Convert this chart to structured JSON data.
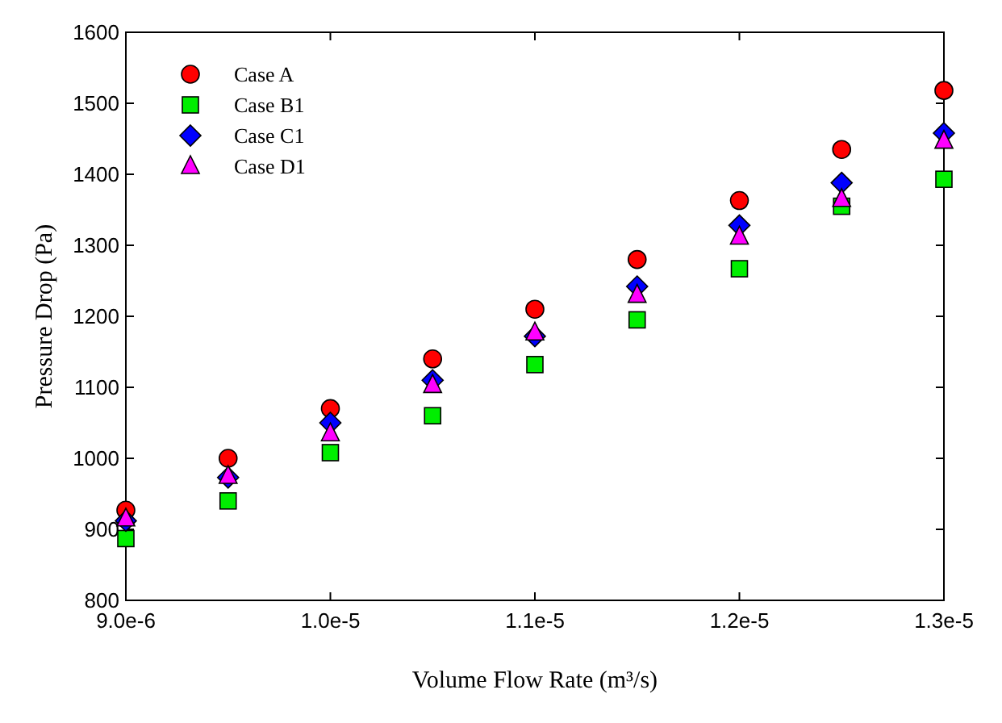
{
  "chart_data": {
    "type": "scatter",
    "xlabel": "Volume Flow Rate (m³/s)",
    "ylabel": "Pressure Drop (Pa)",
    "x": [
      9e-06,
      9.5e-06,
      1e-05,
      1.05e-05,
      1.1e-05,
      1.15e-05,
      1.2e-05,
      1.25e-05,
      1.3e-05
    ],
    "xlim": [
      9e-06,
      1.3e-05
    ],
    "xticks": [
      {
        "value": 9e-06,
        "label": "9.0e-6"
      },
      {
        "value": 1e-05,
        "label": "1.0e-5"
      },
      {
        "value": 1.1e-05,
        "label": "1.1e-5"
      },
      {
        "value": 1.2e-05,
        "label": "1.2e-5"
      },
      {
        "value": 1.3e-05,
        "label": "1.3e-5"
      }
    ],
    "ylim": [
      800,
      1600
    ],
    "yticks": [
      800,
      900,
      1000,
      1100,
      1200,
      1300,
      1400,
      1500,
      1600
    ],
    "grid": false,
    "legend": "top left",
    "series": [
      {
        "name": "Case A",
        "color": "#ff0000",
        "marker": "circle",
        "values": [
          927,
          1000,
          1070,
          1140,
          1210,
          1280,
          1363,
          1435,
          1518
        ]
      },
      {
        "name": "Case B1",
        "color": "#00ee00",
        "marker": "square",
        "values": [
          887,
          940,
          1008,
          1060,
          1132,
          1195,
          1267,
          1355,
          1393
        ]
      },
      {
        "name": "Case C1",
        "color": "#0000ff",
        "marker": "diamond",
        "values": [
          912,
          973,
          1050,
          1110,
          1172,
          1242,
          1328,
          1388,
          1458
        ]
      },
      {
        "name": "Case D1",
        "color": "#ff00ff",
        "marker": "triangle",
        "values": [
          915,
          975,
          1035,
          1103,
          1177,
          1230,
          1312,
          1365,
          1447
        ]
      }
    ]
  }
}
